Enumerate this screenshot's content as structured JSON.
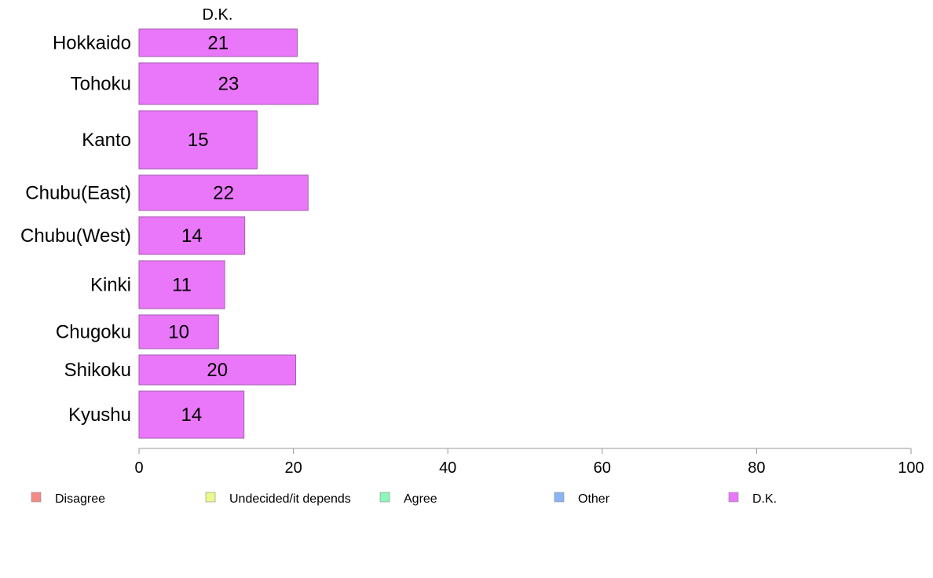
{
  "chart_data": {
    "type": "bar",
    "orientation": "horizontal",
    "series_header": "D.K.",
    "categories": [
      "Hokkaido",
      "Tohoku",
      "Kanto",
      "Chubu(East)",
      "Chubu(West)",
      "Kinki",
      "Chugoku",
      "Shikoku",
      "Kyushu"
    ],
    "series": [
      {
        "name": "D.K.",
        "values": [
          20.5,
          23.2,
          15.3,
          21.9,
          13.7,
          11.1,
          10.3,
          20.3,
          13.6
        ]
      }
    ],
    "data_labels": [
      "21",
      "23",
      "15",
      "22",
      "14",
      "11",
      "10",
      "20",
      "14"
    ],
    "xlim": [
      0,
      100
    ],
    "xticks": [
      0,
      20,
      40,
      60,
      80,
      100
    ],
    "xtick_labels": [
      "0",
      "20",
      "40",
      "60",
      "80",
      "100"
    ],
    "grid": false,
    "legend_position": "bottom",
    "legend": [
      {
        "label": "Disagree",
        "color": "#f28b86"
      },
      {
        "label": "Undecided/it depends",
        "color": "#eaf98a"
      },
      {
        "label": "Agree",
        "color": "#8cf7b9"
      },
      {
        "label": "Other",
        "color": "#8ab4f5"
      },
      {
        "label": "D.K.",
        "color": "#ea77fa"
      }
    ],
    "bar_color": "#ea77fa",
    "bar_edge_color": "#a25fae"
  }
}
